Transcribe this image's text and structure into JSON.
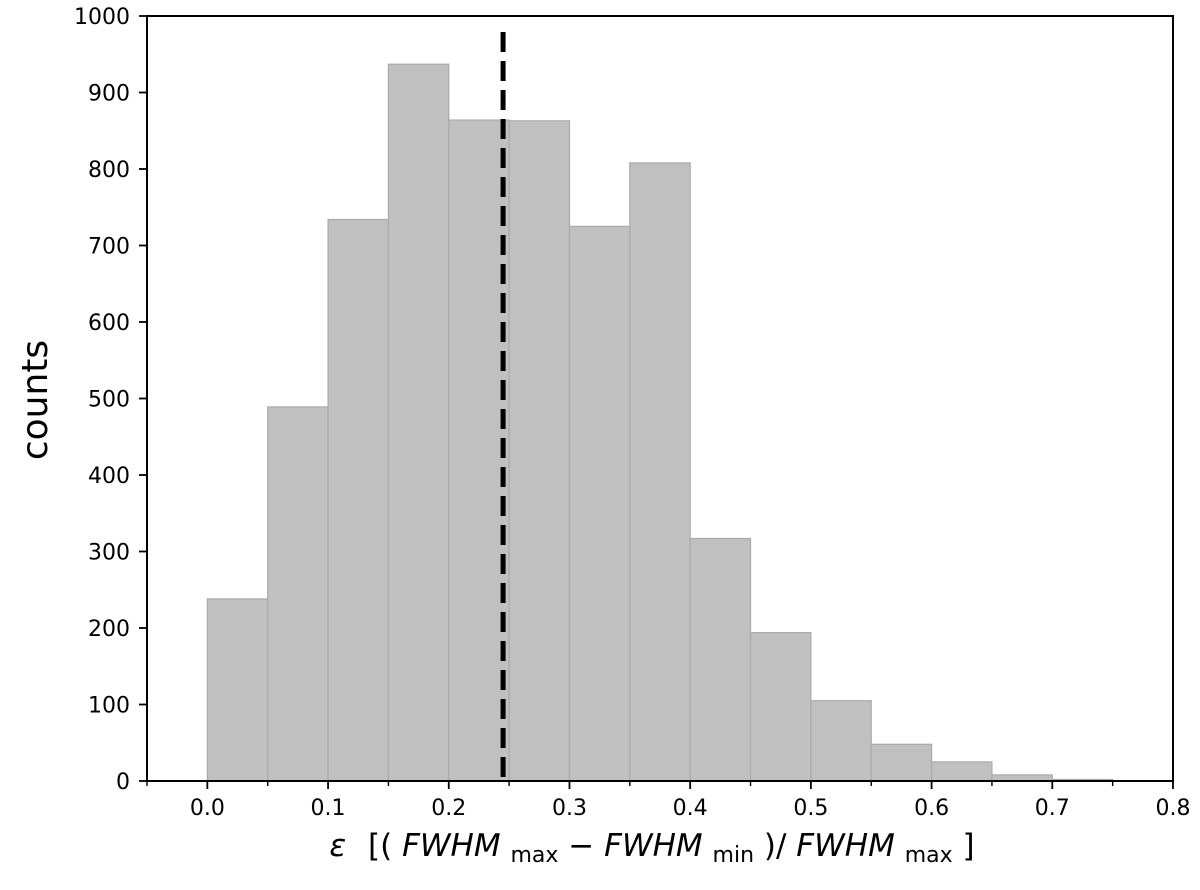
{
  "chart_data": {
    "type": "bar",
    "title": "",
    "xlabel": {
      "symbol": "ε",
      "open": "[(",
      "a": "FWHM",
      "a_sub": "max",
      "minus": " − ",
      "b": "FWHM",
      "b_sub": "min",
      "mid": ")/",
      "c": "FWHM",
      "c_sub": "max",
      "close": "]"
    },
    "ylabel": "counts",
    "xlim": [
      -0.05,
      0.8
    ],
    "ylim": [
      0,
      1000
    ],
    "xticks": [
      "0.0",
      "0.1",
      "0.2",
      "0.3",
      "0.4",
      "0.5",
      "0.6",
      "0.7",
      "0.8"
    ],
    "yticks": [
      "0",
      "100",
      "200",
      "300",
      "400",
      "500",
      "600",
      "700",
      "800",
      "900",
      "1000"
    ],
    "bin_width": 0.05,
    "bins": [
      0.0,
      0.05,
      0.1,
      0.15,
      0.2,
      0.25,
      0.3,
      0.35,
      0.4,
      0.45,
      0.5,
      0.55,
      0.6,
      0.65,
      0.7
    ],
    "values": [
      238,
      489,
      734,
      937,
      864,
      863,
      725,
      808,
      317,
      194,
      105,
      48,
      25,
      8,
      2
    ],
    "bar_color": "#c0c0c0",
    "bar_edge_color": "#aaaaaa",
    "vline": {
      "x": 0.245,
      "style": "dashed",
      "color": "#000000"
    },
    "grid": false
  }
}
